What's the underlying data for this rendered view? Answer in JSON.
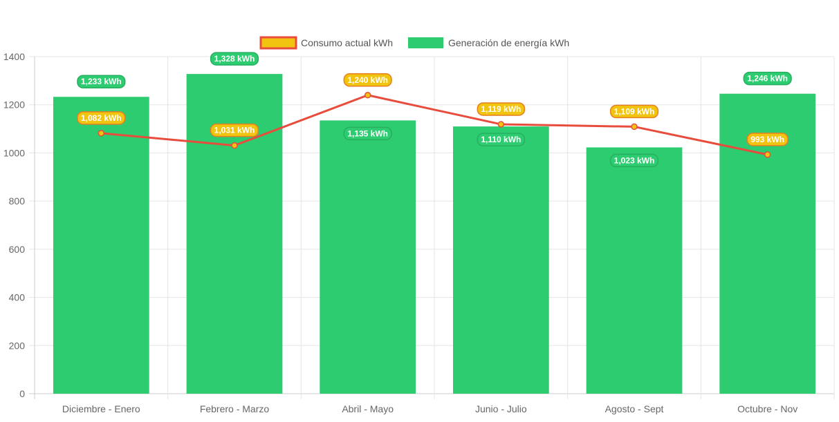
{
  "chart_data": {
    "type": "bar",
    "title": "",
    "xlabel": "",
    "ylabel": "",
    "ylim": [
      0,
      1400
    ],
    "yticks": [
      0,
      200,
      400,
      600,
      800,
      1000,
      1200,
      1400
    ],
    "grid": true,
    "legend_position": "top",
    "categories": [
      "Diciembre - Enero",
      "Febrero - Marzo",
      "Abril - Mayo",
      "Junio - Julio",
      "Agosto - Sept",
      "Octubre - Nov"
    ],
    "series": [
      {
        "name": "Consumo actual kWh",
        "kind": "line",
        "color": "#e74c3c",
        "point_color": "#f1c40f",
        "values": [
          1082,
          1031,
          1240,
          1119,
          1109,
          993
        ],
        "labels": [
          "1,082 kWh",
          "1,031 kWh",
          "1,240 kWh",
          "1,119 kWh",
          "1,109 kWh",
          "993 kWh"
        ]
      },
      {
        "name": "Generación de energía kWh",
        "kind": "bar",
        "color": "#2ecc71",
        "values": [
          1233,
          1328,
          1135,
          1110,
          1023,
          1246
        ],
        "labels": [
          "1,233 kWh",
          "1,328 kWh",
          "1,135 kWh",
          "1,110 kWh",
          "1,023 kWh",
          "1,246 kWh"
        ]
      }
    ]
  }
}
